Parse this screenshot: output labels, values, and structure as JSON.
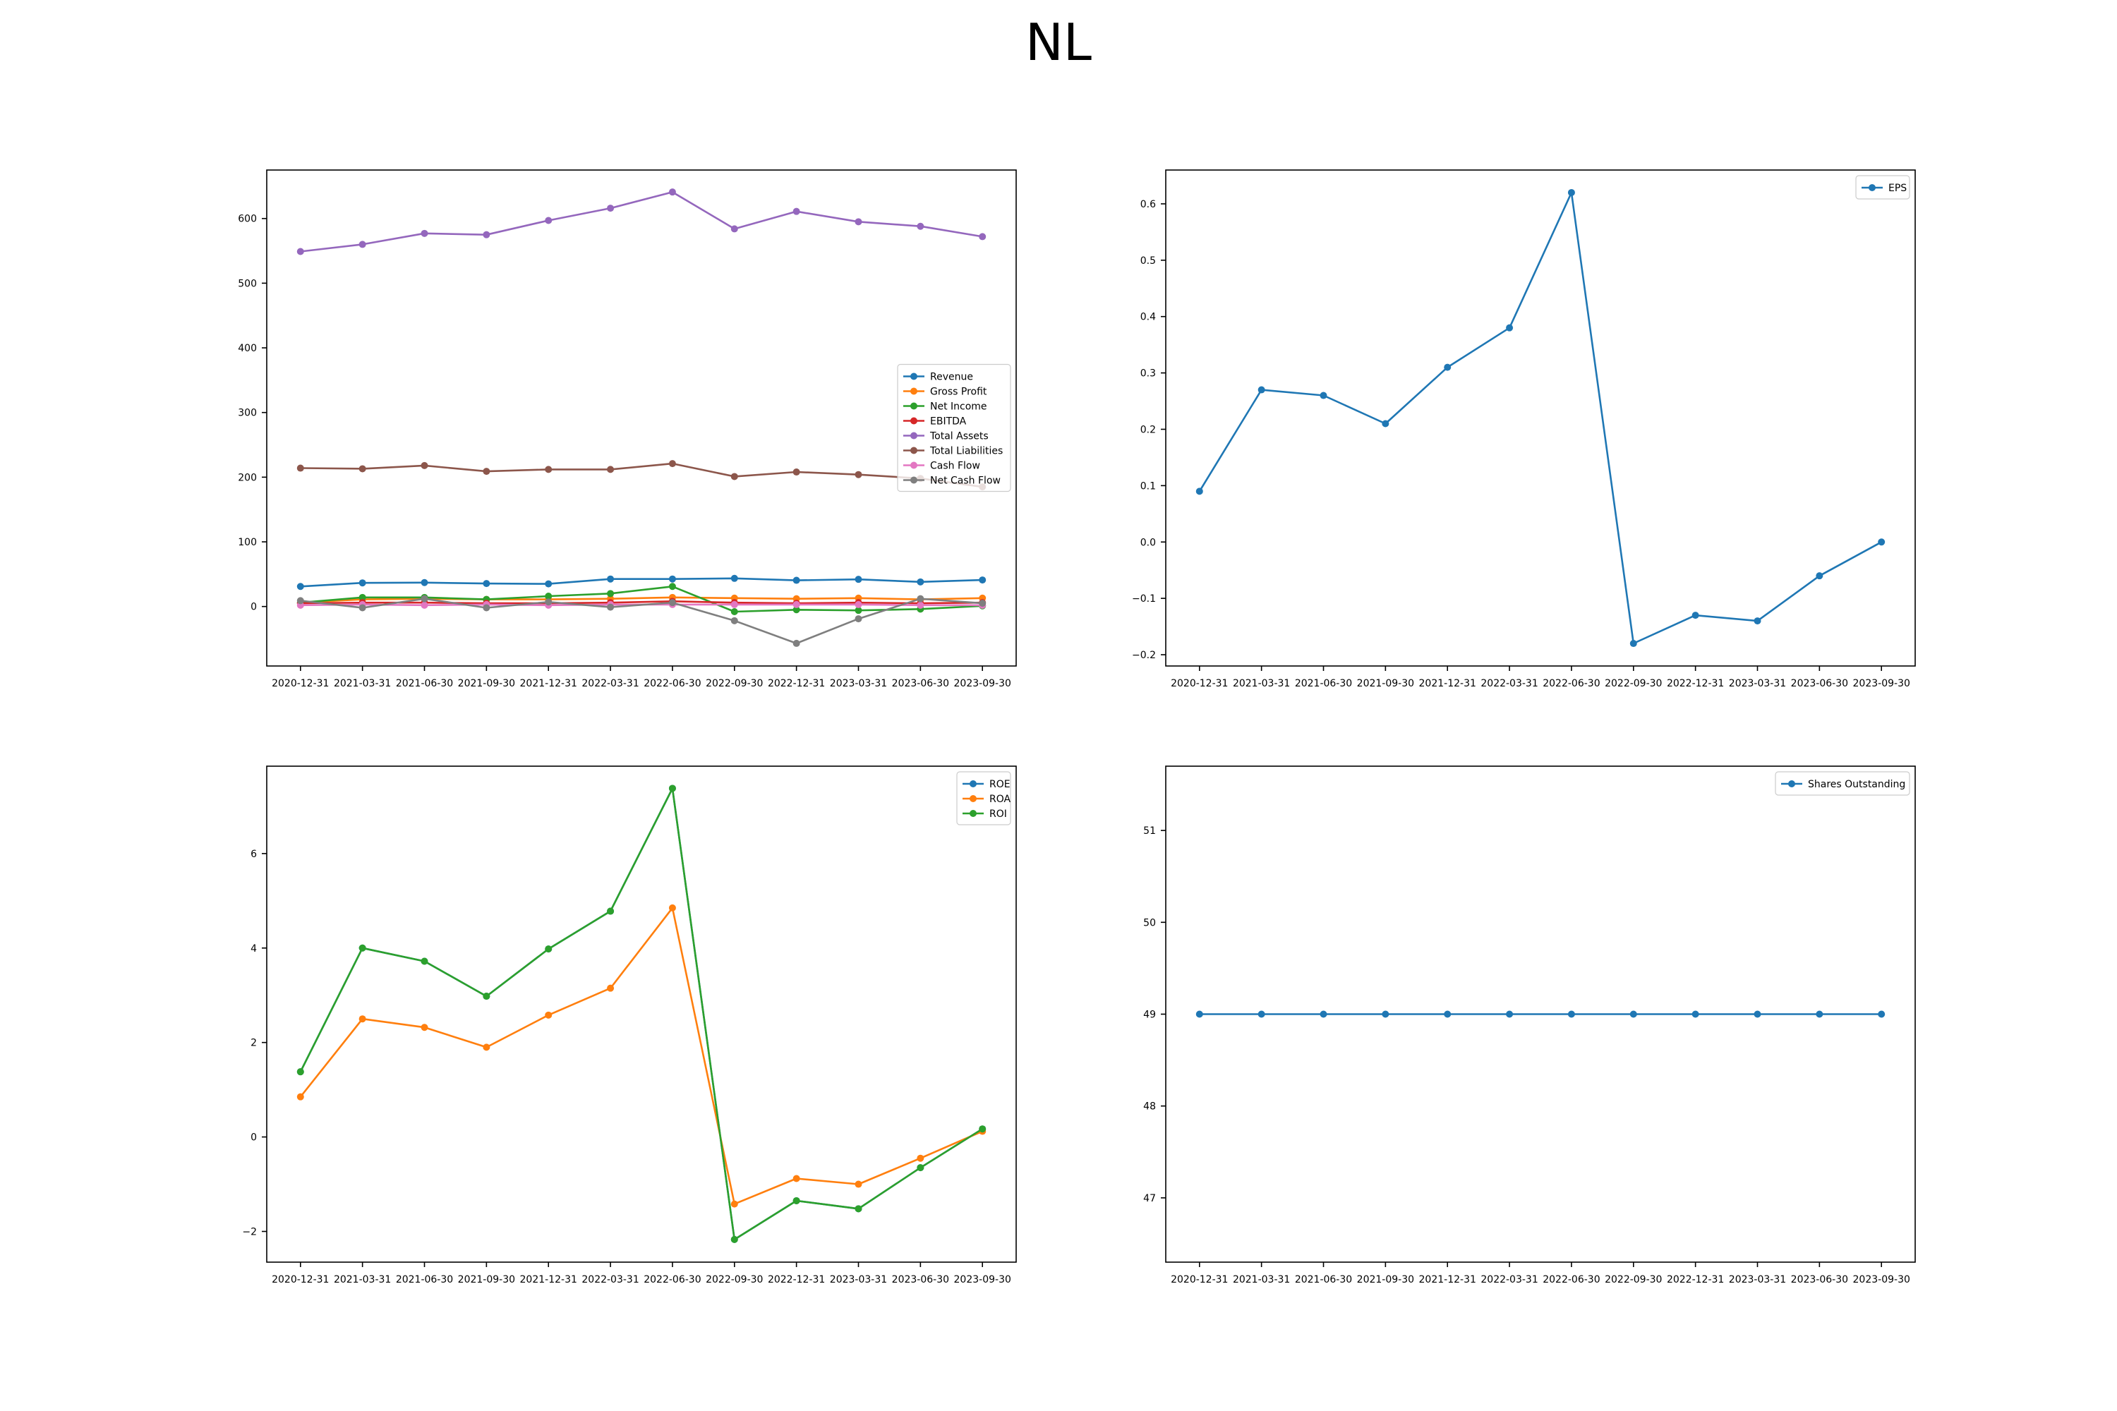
{
  "figure": {
    "title": "NL"
  },
  "colors": {
    "C0": "#1f77b4",
    "C1": "#ff7f0e",
    "C2": "#2ca02c",
    "C3": "#d62728",
    "C4": "#9467bd",
    "C5": "#8c564b",
    "C6": "#e377c2",
    "C7": "#7f7f7f"
  },
  "chart_data": [
    {
      "id": "financials",
      "type": "line",
      "title": "",
      "xlabel": "",
      "ylabel": "",
      "x": [
        "2020-12-31",
        "2021-03-31",
        "2021-06-30",
        "2021-09-30",
        "2021-12-31",
        "2022-03-31",
        "2022-06-30",
        "2022-09-30",
        "2022-12-31",
        "2023-03-31",
        "2023-06-30",
        "2023-09-30"
      ],
      "ylim": [
        -92,
        675
      ],
      "yticks": [
        0,
        100,
        200,
        300,
        400,
        500,
        600
      ],
      "ytick_labels": [
        "0",
        "100",
        "200",
        "300",
        "400",
        "500",
        "600"
      ],
      "legend": "center-right",
      "series": [
        {
          "name": "Revenue",
          "color": "C0",
          "values": [
            31,
            36.5,
            37,
            35.5,
            35,
            42.5,
            42.5,
            43.5,
            40.5,
            42,
            38,
            41
          ]
        },
        {
          "name": "Gross Profit",
          "color": "C1",
          "values": [
            6,
            11,
            12,
            11,
            11,
            12,
            14,
            13,
            12,
            13,
            11,
            13
          ]
        },
        {
          "name": "Net Income",
          "color": "C2",
          "values": [
            6,
            14,
            14,
            11,
            16,
            20,
            31,
            -8,
            -5,
            -6,
            -4,
            1
          ]
        },
        {
          "name": "EBITDA",
          "color": "C3",
          "values": [
            5,
            6,
            6,
            5,
            5,
            6,
            8,
            6,
            5,
            6,
            5,
            6
          ]
        },
        {
          "name": "Total Assets",
          "color": "C4",
          "values": [
            549,
            560,
            577,
            575,
            597,
            616,
            641,
            584,
            611,
            595,
            588,
            572
          ]
        },
        {
          "name": "Total Liabilities",
          "color": "C5",
          "values": [
            214,
            213,
            218,
            209,
            212,
            212,
            221,
            201,
            208,
            204,
            198,
            185
          ]
        },
        {
          "name": "Cash Flow",
          "color": "C6",
          "values": [
            2,
            3,
            2,
            3,
            2,
            3,
            3,
            3,
            3,
            3,
            2,
            2
          ]
        },
        {
          "name": "Net Cash Flow",
          "color": "C7",
          "values": [
            9,
            -2,
            12,
            -2,
            7,
            -1,
            6,
            -22,
            -57,
            -19,
            12,
            5
          ]
        }
      ]
    },
    {
      "id": "eps",
      "type": "line",
      "title": "",
      "xlabel": "",
      "ylabel": "",
      "x": [
        "2020-12-31",
        "2021-03-31",
        "2021-06-30",
        "2021-09-30",
        "2021-12-31",
        "2022-03-31",
        "2022-06-30",
        "2022-09-30",
        "2022-12-31",
        "2023-03-31",
        "2023-06-30",
        "2023-09-30"
      ],
      "ylim": [
        -0.22,
        0.66
      ],
      "yticks": [
        -0.2,
        -0.1,
        0.0,
        0.1,
        0.2,
        0.3,
        0.4,
        0.5,
        0.6
      ],
      "ytick_labels": [
        "−0.2",
        "−0.1",
        "0.0",
        "0.1",
        "0.2",
        "0.3",
        "0.4",
        "0.5",
        "0.6"
      ],
      "legend": "upper-right",
      "series": [
        {
          "name": "EPS",
          "color": "C0",
          "values": [
            0.09,
            0.27,
            0.26,
            0.21,
            0.31,
            0.38,
            0.62,
            -0.18,
            -0.13,
            -0.14,
            -0.06,
            0.0
          ]
        }
      ]
    },
    {
      "id": "returns",
      "type": "line",
      "title": "",
      "xlabel": "",
      "ylabel": "",
      "x": [
        "2020-12-31",
        "2021-03-31",
        "2021-06-30",
        "2021-09-30",
        "2021-12-31",
        "2022-03-31",
        "2022-06-30",
        "2022-09-30",
        "2022-12-31",
        "2023-03-31",
        "2023-06-30",
        "2023-09-30"
      ],
      "ylim": [
        -2.65,
        7.85
      ],
      "yticks": [
        -2,
        0,
        2,
        4,
        6
      ],
      "ytick_labels": [
        "−2",
        "0",
        "2",
        "4",
        "6"
      ],
      "legend": "upper-right",
      "series": [
        {
          "name": "ROE",
          "color": "C0",
          "values": [
            1.38,
            4.0,
            3.72,
            2.98,
            3.98,
            4.78,
            7.38,
            -2.17,
            -1.35,
            -1.52,
            -0.65,
            0.17
          ]
        },
        {
          "name": "ROA",
          "color": "C1",
          "values": [
            0.85,
            2.5,
            2.32,
            1.9,
            2.58,
            3.15,
            4.85,
            -1.42,
            -0.88,
            -1.0,
            -0.45,
            0.12
          ]
        },
        {
          "name": "ROI",
          "color": "C2",
          "values": [
            1.38,
            4.0,
            3.72,
            2.98,
            3.98,
            4.78,
            7.38,
            -2.17,
            -1.35,
            -1.52,
            -0.65,
            0.17
          ]
        }
      ]
    },
    {
      "id": "shares",
      "type": "line",
      "title": "",
      "xlabel": "",
      "ylabel": "",
      "x": [
        "2020-12-31",
        "2021-03-31",
        "2021-06-30",
        "2021-09-30",
        "2021-12-31",
        "2022-03-31",
        "2022-06-30",
        "2022-09-30",
        "2022-12-31",
        "2023-03-31",
        "2023-06-30",
        "2023-09-30"
      ],
      "ylim": [
        46.3,
        51.7
      ],
      "yticks": [
        47,
        48,
        49,
        50,
        51
      ],
      "ytick_labels": [
        "47",
        "48",
        "49",
        "50",
        "51"
      ],
      "legend": "upper-right",
      "series": [
        {
          "name": "Shares Outstanding",
          "color": "C0",
          "values": [
            49,
            49,
            49,
            49,
            49,
            49,
            49,
            49,
            49,
            49,
            49,
            49
          ]
        }
      ]
    }
  ]
}
